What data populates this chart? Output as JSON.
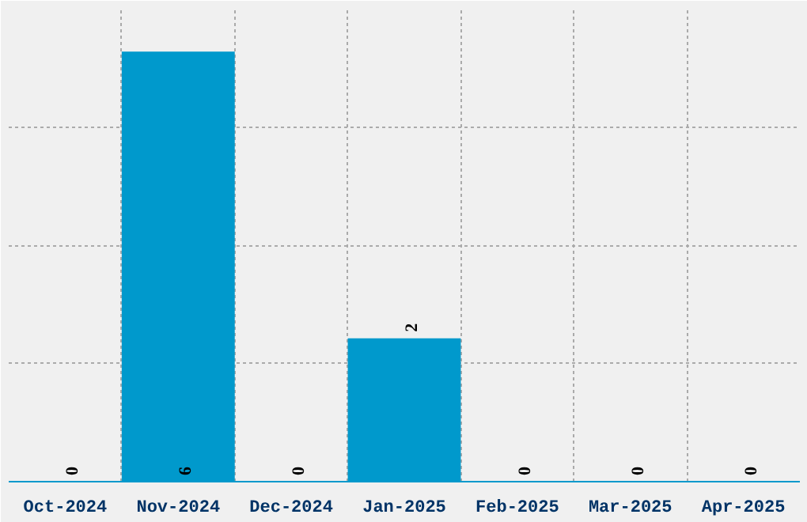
{
  "chart_data": {
    "type": "bar",
    "categories": [
      "Oct-2024",
      "Nov-2024",
      "Dec-2024",
      "Jan-2025",
      "Feb-2025",
      "Mar-2025",
      "Apr-2025"
    ],
    "values": [
      0,
      6,
      0,
      2,
      0,
      0,
      0
    ],
    "color": "#0099cc",
    "ylim": [
      0,
      6.6
    ],
    "yticks": [
      {
        "value": 1.65,
        "label": null
      },
      {
        "value": 3.3,
        "label": null
      },
      {
        "value": 4.95,
        "label": null
      }
    ],
    "tick_labels": "x",
    "grid": true,
    "data_labels": true
  }
}
